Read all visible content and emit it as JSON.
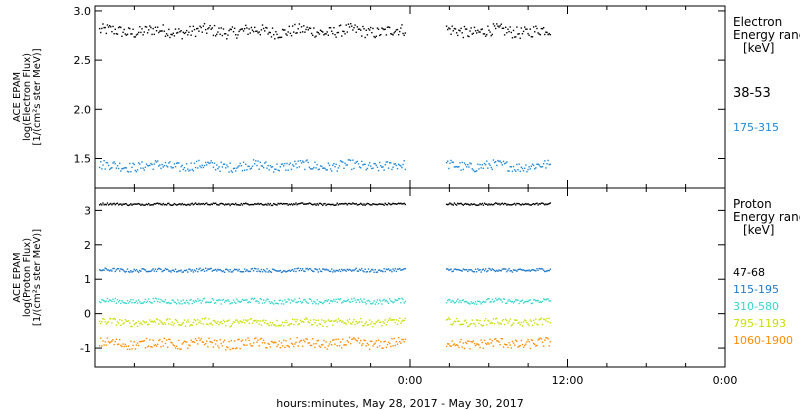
{
  "xaxis": {
    "label": "hours:minutes, May 28, 2017 - May 30, 2017",
    "ticks": [
      {
        "hours": 24,
        "label": "0:00"
      },
      {
        "hours": 36,
        "label": "12:00"
      },
      {
        "hours": 48,
        "label": "0:00"
      }
    ]
  },
  "chart_data": [
    {
      "type": "scatter",
      "panel": "electron",
      "ylabel_lines": [
        "ACE EPAM",
        "log(Electron Flux)",
        "[1/(cm²s ster MeV)]"
      ],
      "legend_title_lines": [
        "Electron",
        "Energy range",
        "[keV]"
      ],
      "xlim": [
        0,
        48
      ],
      "ylim": [
        1.2,
        3.05
      ],
      "yticks": [
        {
          "value": 1.5,
          "label": "1.5"
        },
        {
          "value": 2.0,
          "label": "2.0"
        },
        {
          "value": 2.5,
          "label": "2.5"
        },
        {
          "value": 3.0,
          "label": "3.0"
        }
      ],
      "data_gaps_hours": [
        [
          23.6,
          26.7
        ],
        [
          34.7,
          48
        ]
      ],
      "series": [
        {
          "name": "38-53",
          "color": "#000000",
          "mean": 2.8,
          "amplitude": 0.06
        },
        {
          "name": "175-315",
          "color": "#1e88d8",
          "mean": 1.43,
          "amplitude": 0.05
        }
      ]
    },
    {
      "type": "scatter",
      "panel": "proton",
      "ylabel_lines": [
        "ACE EPAM",
        "log(Proton Flux)",
        "[1/(cm²s ster MeV)]"
      ],
      "legend_title_lines": [
        "Proton",
        "Energy range",
        "[keV]"
      ],
      "xlim": [
        0,
        48
      ],
      "ylim": [
        -1.55,
        3.65
      ],
      "yticks": [
        {
          "value": -1,
          "label": "-1"
        },
        {
          "value": 0,
          "label": "0"
        },
        {
          "value": 1,
          "label": "1"
        },
        {
          "value": 2,
          "label": "2"
        },
        {
          "value": 3,
          "label": "3"
        }
      ],
      "data_gaps_hours": [
        [
          23.6,
          26.7
        ],
        [
          34.7,
          48
        ]
      ],
      "series": [
        {
          "name": "47-68",
          "color": "#000000",
          "mean": 3.2,
          "amplitude": 0.03
        },
        {
          "name": "115-195",
          "color": "#1e78c8",
          "mean": 1.28,
          "amplitude": 0.05
        },
        {
          "name": "310-580",
          "color": "#33d6cc",
          "mean": 0.38,
          "amplitude": 0.07
        },
        {
          "name": "795-1193",
          "color": "#c8e000",
          "mean": -0.23,
          "amplitude": 0.1
        },
        {
          "name": "1060-1900",
          "color": "#ff8c00",
          "mean": -0.85,
          "amplitude": 0.14
        }
      ]
    }
  ]
}
